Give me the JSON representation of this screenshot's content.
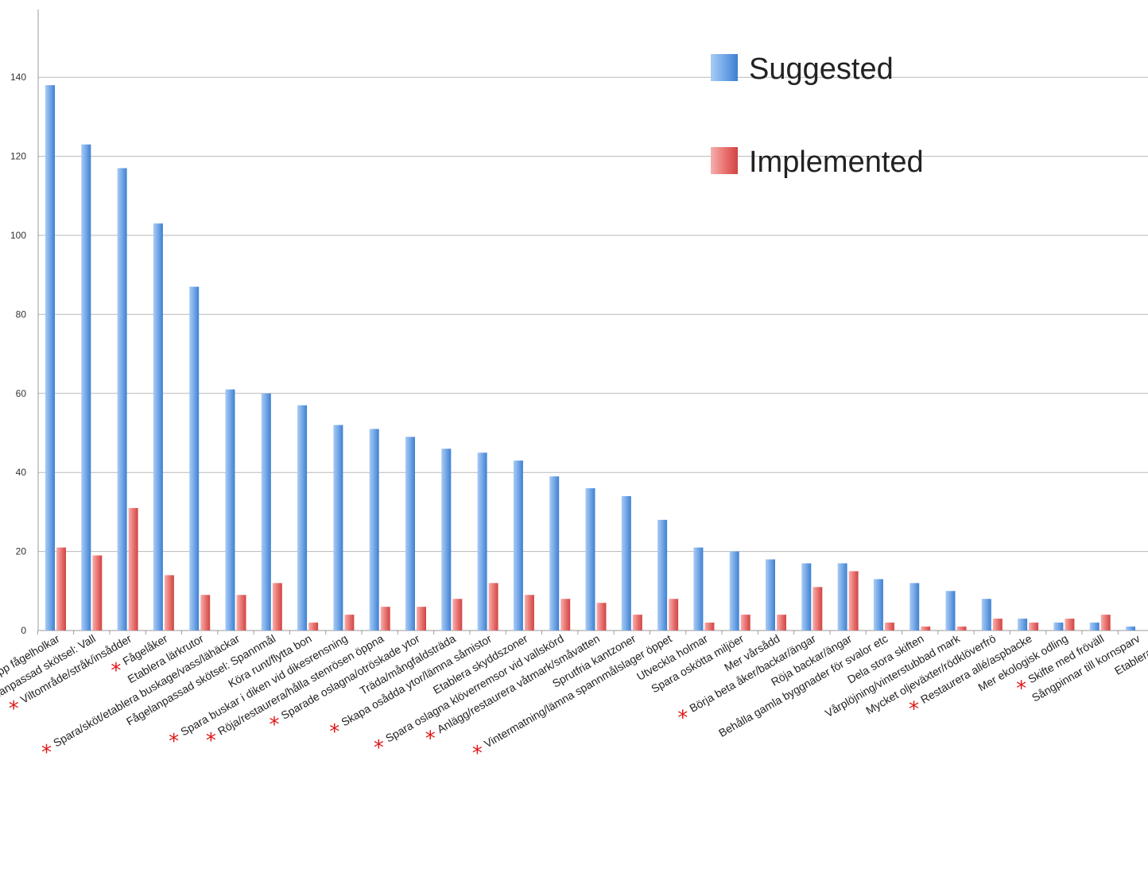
{
  "chart_data": {
    "type": "bar",
    "title": "",
    "xlabel": "",
    "ylabel": "",
    "ylim": [
      0,
      150
    ],
    "yticks": [
      0,
      20,
      40,
      60,
      80,
      100,
      120,
      140
    ],
    "grid": true,
    "legend_position": "top-right",
    "categories": [
      "Sätta upp fågelholkar",
      "Fågelanpassad skötsel: Vall",
      "Viltområde/stråk/insådder",
      "Fågelåker",
      "Etablera lärkrutor",
      "Spara/sköt/etablera buskage/vass/lähäckar",
      "Fågelanpassad skötsel: Spannmål",
      "Köra runt/flytta bon",
      "Spara buskar i diken vid dikesrensning",
      "Röja/restaurera/hålla stenrösen öppna",
      "Sparade oslagna/otröskade ytor",
      "Träda/mångfaldsträda",
      "Skapa osådda ytor/lämna såmistor",
      "Etablera skyddszoner",
      "Spara oslagna klöverremsor vid vallskörd",
      "Anlägg/restaurera våtmark/småvatten",
      "Sprutfria kantzoner",
      "Vintermatning/lämna spannmålslager öppet",
      "Utveckla holmar",
      "Spara oskötta miljöer",
      "Mer vårsådd",
      "Börja beta åker/backar/ängar",
      "Röja backar/ängar",
      "Behålla gamla byggnader för svalor etc",
      "Dela stora skiften",
      "Vårplöjning/vinterstubbad mark",
      "Mycket oljeväxter/rödklöverfrö",
      "Restaurera allé/aspbacke",
      "Mer ekologisk odling",
      "Skifte med fröväll",
      "Sångpinnar till kornsparv",
      "Etablera Salix"
    ],
    "series": [
      {
        "name": "Suggested",
        "color": "#5f9be0",
        "values": [
          138,
          123,
          117,
          103,
          87,
          61,
          60,
          57,
          52,
          51,
          49,
          46,
          45,
          43,
          39,
          36,
          34,
          28,
          21,
          20,
          18,
          17,
          17,
          13,
          12,
          10,
          8,
          3,
          2,
          2,
          1,
          1
        ]
      },
      {
        "name": "Implemented",
        "color": "#e8706e",
        "values": [
          21,
          19,
          31,
          14,
          9,
          9,
          12,
          2,
          4,
          6,
          6,
          8,
          12,
          9,
          8,
          7,
          4,
          8,
          2,
          4,
          4,
          11,
          15,
          2,
          1,
          1,
          3,
          2,
          3,
          4,
          0,
          0
        ]
      }
    ],
    "annotation_marker": "*",
    "annotated_categories": [
      "Viltområde/stråk/insådder",
      "Fågelåker",
      "Spara/sköt/etablera buskage/vass/lähäckar",
      "Spara buskar i diken vid dikesrensning",
      "Röja/restaurera/hålla stenrösen öppna",
      "Sparade oslagna/otröskade ytor",
      "Skapa osådda ytor/lämna såmistor",
      "Spara oslagna klöverremsor vid vallskörd",
      "Anlägg/restaurera våtmark/småvatten",
      "Vintermatning/lämna spannmålslager öppet",
      "Börja beta åker/backar/ängar",
      "Restaurera allé/aspbacke",
      "Skifte med fröväll"
    ]
  }
}
